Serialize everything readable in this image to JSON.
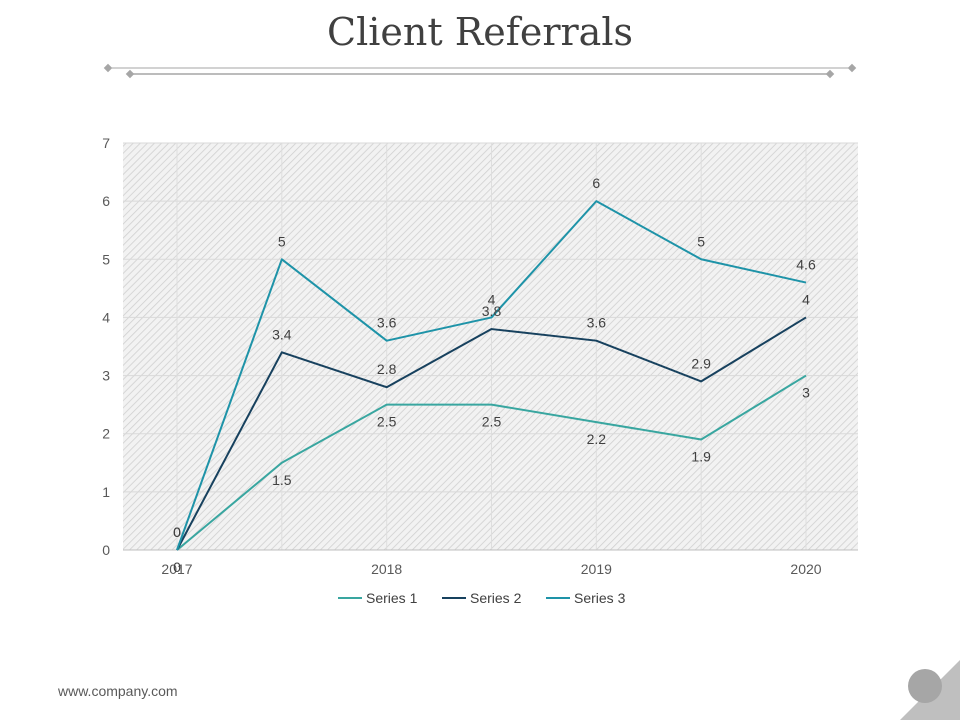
{
  "page": {
    "title": "Client Referrals",
    "footer": "www.company.com",
    "colors": {
      "title": "#404040",
      "grid": "#d9d9d9",
      "plot_bg": "#ebebeb"
    }
  },
  "chart_data": {
    "type": "line",
    "x": [
      0,
      0.5,
      1,
      1.5,
      2,
      2.5,
      3
    ],
    "x_tick_labels": [
      "2017",
      "2018",
      "2019",
      "2020"
    ],
    "ylim": [
      0,
      7
    ],
    "y_ticks": [
      0,
      1,
      2,
      3,
      4,
      5,
      6,
      7
    ],
    "grid": true,
    "legend_position": "bottom",
    "series": [
      {
        "name": "Series 1",
        "color": "#39a6a0",
        "values": [
          0,
          1.5,
          2.5,
          2.5,
          2.2,
          1.9,
          3
        ]
      },
      {
        "name": "Series 2",
        "color": "#17415e",
        "values": [
          0,
          3.4,
          2.8,
          3.8,
          3.6,
          2.9,
          4
        ]
      },
      {
        "name": "Series 3",
        "color": "#1e93a8",
        "values": [
          0,
          5,
          3.6,
          4,
          6,
          5,
          4.6
        ]
      }
    ]
  }
}
